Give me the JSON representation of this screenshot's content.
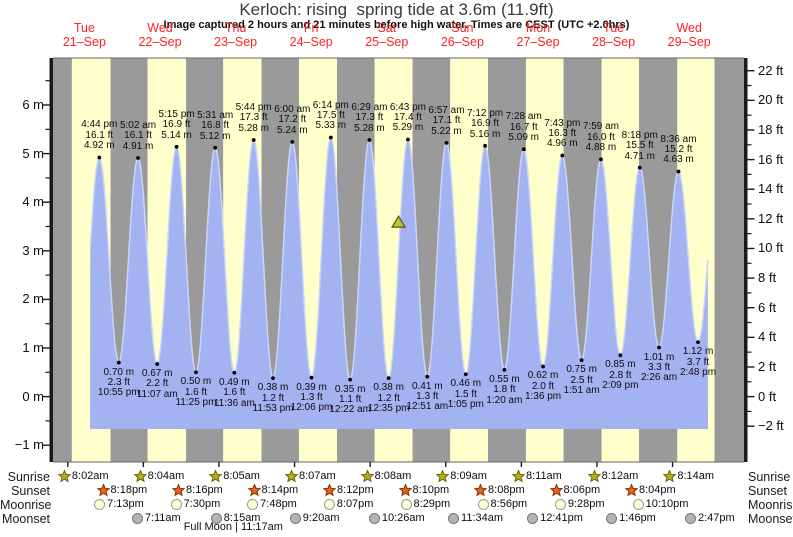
{
  "title": "Kerloch: rising  spring tide at 3.6m (11.9ft)",
  "subtitle": "Image captured 2 hours and 21 minutes before high water. Times are CEST (UTC +2.0hrs)",
  "chart_data": {
    "type": "area",
    "timezone_note": "CEST (UTC +2.0hrs)",
    "days": [
      {
        "name": "Tue",
        "date": "21–Sep"
      },
      {
        "name": "Wed",
        "date": "22–Sep"
      },
      {
        "name": "Thu",
        "date": "23–Sep"
      },
      {
        "name": "Fri",
        "date": "24–Sep"
      },
      {
        "name": "Sat",
        "date": "25–Sep"
      },
      {
        "name": "Sun",
        "date": "26–Sep"
      },
      {
        "name": "Mon",
        "date": "27–Sep"
      },
      {
        "name": "Tue",
        "date": "28–Sep"
      },
      {
        "name": "Wed",
        "date": "29–Sep"
      }
    ],
    "left_axis": {
      "unit": "m",
      "ticks": [
        {
          "v": -1,
          "label": "−1 m"
        },
        {
          "v": 0,
          "label": "0 m"
        },
        {
          "v": 1,
          "label": "1 m"
        },
        {
          "v": 2,
          "label": "2 m"
        },
        {
          "v": 3,
          "label": "3 m"
        },
        {
          "v": 4,
          "label": "4 m"
        },
        {
          "v": 5,
          "label": "5 m"
        },
        {
          "v": 6,
          "label": "6 m"
        }
      ]
    },
    "right_axis": {
      "unit": "ft",
      "ticks": [
        {
          "ft": -2,
          "label": "−2 ft"
        },
        {
          "ft": 0,
          "label": "0 ft"
        },
        {
          "ft": 2,
          "label": "2 ft"
        },
        {
          "ft": 4,
          "label": "4 ft"
        },
        {
          "ft": 6,
          "label": "6 ft"
        },
        {
          "ft": 8,
          "label": "8 ft"
        },
        {
          "ft": 10,
          "label": "10 ft"
        },
        {
          "ft": 12,
          "label": "12 ft"
        },
        {
          "ft": 14,
          "label": "14 ft"
        },
        {
          "ft": 16,
          "label": "16 ft"
        },
        {
          "ft": 18,
          "label": "18 ft"
        },
        {
          "ft": 20,
          "label": "20 ft"
        },
        {
          "ft": 22,
          "label": "22 ft"
        }
      ]
    },
    "tide_events": [
      {
        "kind": "high",
        "day": 0,
        "time24": "16:44",
        "time": "4:44 pm",
        "ft": "16.1 ft",
        "m": "4.92 m",
        "height_m": 4.92
      },
      {
        "kind": "low",
        "day": 0,
        "time24": "22:55",
        "time": "10:55 pm",
        "ft": "2.3 ft",
        "m": "0.70 m",
        "height_m": 0.7
      },
      {
        "kind": "high",
        "day": 1,
        "time24": "05:02",
        "time": "5:02 am",
        "ft": "16.1 ft",
        "m": "4.91 m",
        "height_m": 4.91
      },
      {
        "kind": "low",
        "day": 1,
        "time24": "11:07",
        "time": "11:07 am",
        "ft": "2.2 ft",
        "m": "0.67 m",
        "height_m": 0.67
      },
      {
        "kind": "high",
        "day": 1,
        "time24": "17:15",
        "time": "5:15 pm",
        "ft": "16.9 ft",
        "m": "5.14 m",
        "height_m": 5.14
      },
      {
        "kind": "low",
        "day": 1,
        "time24": "23:25",
        "time": "11:25 pm",
        "ft": "1.6 ft",
        "m": "0.50 m",
        "height_m": 0.5
      },
      {
        "kind": "high",
        "day": 2,
        "time24": "05:31",
        "time": "5:31 am",
        "ft": "16.8 ft",
        "m": "5.12 m",
        "height_m": 5.12
      },
      {
        "kind": "low",
        "day": 2,
        "time24": "11:36",
        "time": "11:36 am",
        "ft": "1.6 ft",
        "m": "0.49 m",
        "height_m": 0.49
      },
      {
        "kind": "high",
        "day": 2,
        "time24": "17:44",
        "time": "5:44 pm",
        "ft": "17.3 ft",
        "m": "5.28 m",
        "height_m": 5.28
      },
      {
        "kind": "low",
        "day": 2,
        "time24": "23:53",
        "time": "11:53 pm",
        "ft": "1.2 ft",
        "m": "0.38 m",
        "height_m": 0.38
      },
      {
        "kind": "high",
        "day": 3,
        "time24": "06:00",
        "time": "6:00 am",
        "ft": "17.2 ft",
        "m": "5.24 m",
        "height_m": 5.24
      },
      {
        "kind": "low",
        "day": 3,
        "time24": "12:06",
        "time": "12:06 pm",
        "ft": "1.3 ft",
        "m": "0.39 m",
        "height_m": 0.39
      },
      {
        "kind": "high",
        "day": 3,
        "time24": "18:14",
        "time": "6:14 pm",
        "ft": "17.5 ft",
        "m": "5.33 m",
        "height_m": 5.33
      },
      {
        "kind": "low",
        "day": 4,
        "time24": "00:22",
        "time": "12:22 am",
        "ft": "1.1 ft",
        "m": "0.35 m",
        "height_m": 0.35
      },
      {
        "kind": "high",
        "day": 4,
        "time24": "06:29",
        "time": "6:29 am",
        "ft": "17.3 ft",
        "m": "5.28 m",
        "height_m": 5.28
      },
      {
        "kind": "low",
        "day": 4,
        "time24": "12:35",
        "time": "12:35 pm",
        "ft": "1.2 ft",
        "m": "0.38 m",
        "height_m": 0.38
      },
      {
        "kind": "high",
        "day": 4,
        "time24": "18:43",
        "time": "6:43 pm",
        "ft": "17.4 ft",
        "m": "5.29 m",
        "height_m": 5.29
      },
      {
        "kind": "low",
        "day": 5,
        "time24": "00:51",
        "time": "12:51 am",
        "ft": "1.3 ft",
        "m": "0.41 m",
        "height_m": 0.41
      },
      {
        "kind": "high",
        "day": 5,
        "time24": "06:57",
        "time": "6:57 am",
        "ft": "17.1 ft",
        "m": "5.22 m",
        "height_m": 5.22
      },
      {
        "kind": "low",
        "day": 5,
        "time24": "13:05",
        "time": "1:05 pm",
        "ft": "1.5 ft",
        "m": "0.46 m",
        "height_m": 0.46
      },
      {
        "kind": "high",
        "day": 5,
        "time24": "19:12",
        "time": "7:12 pm",
        "ft": "16.9 ft",
        "m": "5.16 m",
        "height_m": 5.16
      },
      {
        "kind": "low",
        "day": 6,
        "time24": "01:20",
        "time": "1:20 am",
        "ft": "1.8 ft",
        "m": "0.55 m",
        "height_m": 0.55
      },
      {
        "kind": "high",
        "day": 6,
        "time24": "07:28",
        "time": "7:28 am",
        "ft": "16.7 ft",
        "m": "5.09 m",
        "height_m": 5.09
      },
      {
        "kind": "low",
        "day": 6,
        "time24": "13:36",
        "time": "1:36 pm",
        "ft": "2.0 ft",
        "m": "0.62 m",
        "height_m": 0.62
      },
      {
        "kind": "high",
        "day": 6,
        "time24": "19:43",
        "time": "7:43 pm",
        "ft": "16.3 ft",
        "m": "4.96 m",
        "height_m": 4.96
      },
      {
        "kind": "low",
        "day": 7,
        "time24": "01:51",
        "time": "1:51 am",
        "ft": "2.5 ft",
        "m": "0.75 m",
        "height_m": 0.75
      },
      {
        "kind": "high",
        "day": 7,
        "time24": "07:59",
        "time": "7:59 am",
        "ft": "16.0 ft",
        "m": "4.88 m",
        "height_m": 4.88
      },
      {
        "kind": "low",
        "day": 7,
        "time24": "14:09",
        "time": "2:09 pm",
        "ft": "2.8 ft",
        "m": "0.85 m",
        "height_m": 0.85
      },
      {
        "kind": "high",
        "day": 7,
        "time24": "20:18",
        "time": "8:18 pm",
        "ft": "15.5 ft",
        "m": "4.71 m",
        "height_m": 4.71
      },
      {
        "kind": "low",
        "day": 8,
        "time24": "02:26",
        "time": "2:26 am",
        "ft": "3.3 ft",
        "m": "1.01 m",
        "height_m": 1.01
      },
      {
        "kind": "high",
        "day": 8,
        "time24": "08:36",
        "time": "8:36 am",
        "ft": "15.2 ft",
        "m": "4.63 m",
        "height_m": 4.63
      },
      {
        "kind": "low",
        "day": 8,
        "time24": "14:48",
        "time": "2:48 pm",
        "ft": "3.7 ft",
        "m": "1.12 m",
        "height_m": 1.12
      }
    ],
    "marker": {
      "level_m": 3.6,
      "level_label": "3.6m (11.9ft)",
      "day": 4,
      "time24": "16:22"
    },
    "astro": {
      "row_labels": {
        "sunrise": "Sunrise",
        "sunset": "Sunset",
        "moonrise": "Moonrise",
        "moonset": "Moonset"
      },
      "sunrise": [
        {
          "day": 0,
          "label": "8:02am",
          "time24": "08:02"
        },
        {
          "day": 1,
          "label": "8:04am",
          "time24": "08:04"
        },
        {
          "day": 2,
          "label": "8:05am",
          "time24": "08:05"
        },
        {
          "day": 3,
          "label": "8:07am",
          "time24": "08:07"
        },
        {
          "day": 4,
          "label": "8:08am",
          "time24": "08:08"
        },
        {
          "day": 5,
          "label": "8:09am",
          "time24": "08:09"
        },
        {
          "day": 6,
          "label": "8:11am",
          "time24": "08:11"
        },
        {
          "day": 7,
          "label": "8:12am",
          "time24": "08:12"
        },
        {
          "day": 8,
          "label": "8:14am",
          "time24": "08:14"
        }
      ],
      "sunset": [
        {
          "day": 0,
          "label": "8:18pm",
          "time24": "20:18"
        },
        {
          "day": 1,
          "label": "8:16pm",
          "time24": "20:16"
        },
        {
          "day": 2,
          "label": "8:14pm",
          "time24": "20:14"
        },
        {
          "day": 3,
          "label": "8:12pm",
          "time24": "20:12"
        },
        {
          "day": 4,
          "label": "8:10pm",
          "time24": "20:10"
        },
        {
          "day": 5,
          "label": "8:08pm",
          "time24": "20:08"
        },
        {
          "day": 6,
          "label": "8:06pm",
          "time24": "20:06"
        },
        {
          "day": 7,
          "label": "8:04pm",
          "time24": "20:04"
        }
      ],
      "moonrise": [
        {
          "day": 0,
          "label": "7:13pm",
          "time24": "19:13"
        },
        {
          "day": 1,
          "label": "7:30pm",
          "time24": "19:30"
        },
        {
          "day": 2,
          "label": "7:48pm",
          "time24": "19:48"
        },
        {
          "day": 3,
          "label": "8:07pm",
          "time24": "20:07"
        },
        {
          "day": 4,
          "label": "8:29pm",
          "time24": "20:29"
        },
        {
          "day": 5,
          "label": "8:56pm",
          "time24": "20:56"
        },
        {
          "day": 6,
          "label": "9:28pm",
          "time24": "21:28"
        },
        {
          "day": 7,
          "label": "10:10pm",
          "time24": "22:10"
        }
      ],
      "moonset": [
        {
          "day": 1,
          "label": "7:11am",
          "time24": "07:11"
        },
        {
          "day": 2,
          "label": "8:15am",
          "time24": "08:15"
        },
        {
          "day": 3,
          "label": "9:20am",
          "time24": "09:20"
        },
        {
          "day": 4,
          "label": "10:26am",
          "time24": "10:26"
        },
        {
          "day": 5,
          "label": "11:34am",
          "time24": "11:34"
        },
        {
          "day": 6,
          "label": "12:41pm",
          "time24": "12:41"
        },
        {
          "day": 7,
          "label": "1:46pm",
          "time24": "13:46"
        },
        {
          "day": 8,
          "label": "2:47pm",
          "time24": "14:47"
        }
      ]
    },
    "full_moon": {
      "label": "Full Moon | 11:17am",
      "day": 2,
      "time24": "11:17"
    },
    "colors": {
      "day_band": "#ffffcc",
      "night_band": "#9a9a9a",
      "water": "#a3b2f0",
      "water_edge": "#cbd5f8",
      "day_label_red": "#ff2222",
      "axis": "#1a1a1a",
      "sunrise_icon": "#b8ae25",
      "sunset_icon": "#e2641e",
      "moonrise_icon": "#ffffd8",
      "moonset_icon": "#b4b4b4",
      "marker_fill": "#c6bf33"
    }
  }
}
